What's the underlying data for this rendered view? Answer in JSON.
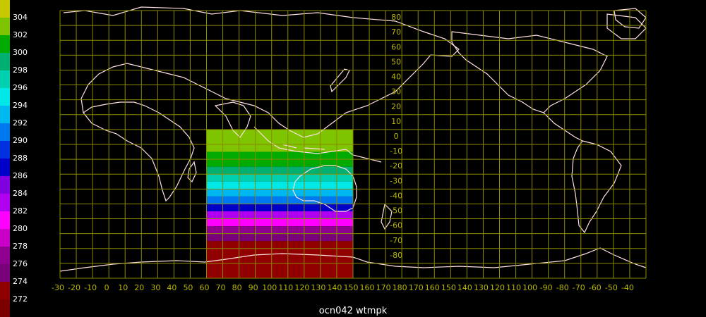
{
  "title": "ocn042 wtmpk",
  "colorbar": {
    "labels": [
      "304",
      "302",
      "300",
      "298",
      "296",
      "294",
      "292",
      "290",
      "288",
      "286",
      "284",
      "282",
      "280",
      "278",
      "276",
      "274",
      "272"
    ],
    "colors": [
      "#c8c800",
      "#7fc400",
      "#00aa00",
      "#00b070",
      "#00d0b0",
      "#00e8e8",
      "#00b8f0",
      "#0078f0",
      "#0030e0",
      "#0000c8",
      "#8000e0",
      "#b000f0",
      "#ff00ff",
      "#c800c8",
      "#900090",
      "#780078",
      "#900000",
      "#7a0000"
    ]
  },
  "map": {
    "lon_labels": [
      "-30",
      "-20",
      "-10",
      "0",
      "10",
      "20",
      "30",
      "40",
      "50",
      "60",
      "70",
      "80",
      "90",
      "100",
      "110",
      "120",
      "130",
      "140",
      "150",
      "160",
      "170",
      "180",
      "170",
      "160",
      "150",
      "140",
      "130",
      "120",
      "110",
      "100",
      "-90",
      "-80",
      "-70",
      "-60",
      "-50",
      "-40"
    ],
    "lat_labels": [
      "80",
      "70",
      "60",
      "50",
      "40",
      "30",
      "20",
      "10",
      "0",
      "-10",
      "-20",
      "-30",
      "-40",
      "-50",
      "-60",
      "-70",
      "-80"
    ],
    "grid_color": "#8a8a00",
    "coast_color": "#ffe0e0",
    "data_field": {
      "lon_range": [
        60,
        150
      ],
      "lat_range": [
        -90,
        10
      ],
      "bands": [
        {
          "lat": [
            10,
            0
          ],
          "value": 303
        },
        {
          "lat": [
            0,
            -5
          ],
          "value": 302
        },
        {
          "lat": [
            -5,
            -10
          ],
          "value": 301
        },
        {
          "lat": [
            -10,
            -15
          ],
          "value": 300
        },
        {
          "lat": [
            -15,
            -20
          ],
          "value": 299
        },
        {
          "lat": [
            -20,
            -25
          ],
          "value": 297
        },
        {
          "lat": [
            -25,
            -30
          ],
          "value": 295
        },
        {
          "lat": [
            -30,
            -35
          ],
          "value": 293
        },
        {
          "lat": [
            -35,
            -40
          ],
          "value": 290
        },
        {
          "lat": [
            -40,
            -45
          ],
          "value": 286
        },
        {
          "lat": [
            -45,
            -50
          ],
          "value": 283
        },
        {
          "lat": [
            -50,
            -55
          ],
          "value": 280
        },
        {
          "lat": [
            -55,
            -60
          ],
          "value": 277
        },
        {
          "lat": [
            -60,
            -65
          ],
          "value": 274
        },
        {
          "lat": [
            -65,
            -90
          ],
          "value": 272
        }
      ]
    }
  }
}
